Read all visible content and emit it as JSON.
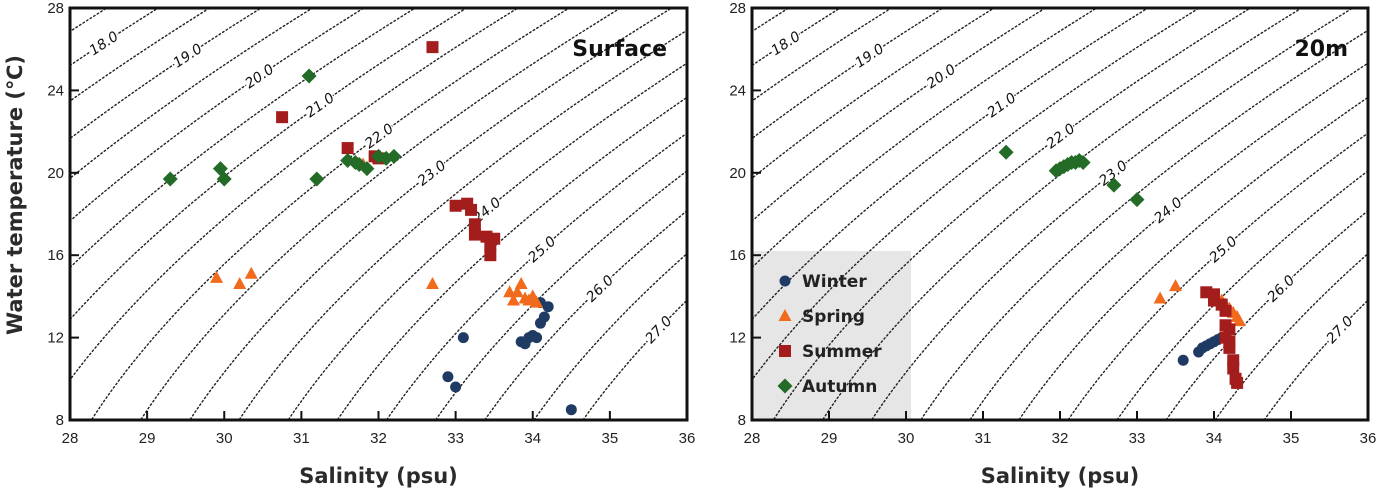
{
  "chart_data": [
    {
      "type": "scatter",
      "title": "Surface",
      "xlabel": "Salinity (psu)",
      "ylabel": "Water temperature (℃)",
      "xlim": [
        28,
        36
      ],
      "ylim": [
        8,
        28
      ],
      "x_ticks": [
        "28",
        "29",
        "30",
        "31",
        "32",
        "33",
        "34",
        "35",
        "36"
      ],
      "y_ticks": [
        "8",
        "12",
        "16",
        "20",
        "24",
        "28"
      ],
      "isopycnals": [
        "18.0",
        "19.0",
        "20.0",
        "21.0",
        "22.0",
        "23.0",
        "24.0",
        "25.0",
        "26.0",
        "27.0"
      ],
      "series": [
        {
          "name": "Winter",
          "marker": "circle",
          "color": "#1f3b63",
          "points": [
            [
              32.9,
              10.1
            ],
            [
              33.0,
              9.6
            ],
            [
              33.1,
              12.0
            ],
            [
              33.85,
              11.8
            ],
            [
              33.9,
              11.7
            ],
            [
              33.95,
              12.0
            ],
            [
              34.0,
              12.1
            ],
            [
              34.05,
              12.0
            ],
            [
              34.1,
              12.7
            ],
            [
              34.15,
              13.0
            ],
            [
              34.2,
              13.5
            ],
            [
              34.1,
              13.7
            ],
            [
              34.5,
              8.5
            ]
          ]
        },
        {
          "name": "Spring",
          "marker": "triangle",
          "color": "#f26b1d",
          "points": [
            [
              29.9,
              14.9
            ],
            [
              30.2,
              14.6
            ],
            [
              30.35,
              15.1
            ],
            [
              31.8,
              20.4
            ],
            [
              32.7,
              14.6
            ],
            [
              33.7,
              14.2
            ],
            [
              33.75,
              13.8
            ],
            [
              33.8,
              14.2
            ],
            [
              33.85,
              14.6
            ],
            [
              33.9,
              13.9
            ],
            [
              33.95,
              13.8
            ],
            [
              34.0,
              14.0
            ],
            [
              34.05,
              13.7
            ]
          ]
        },
        {
          "name": "Summer",
          "marker": "square",
          "color": "#a31d1d",
          "points": [
            [
              30.75,
              22.7
            ],
            [
              31.6,
              21.2
            ],
            [
              31.95,
              20.8
            ],
            [
              32.0,
              20.7
            ],
            [
              32.7,
              26.1
            ],
            [
              33.0,
              18.4
            ],
            [
              33.15,
              18.5
            ],
            [
              33.2,
              18.2
            ],
            [
              33.25,
              17.5
            ],
            [
              33.25,
              17.0
            ],
            [
              33.4,
              16.9
            ],
            [
              33.45,
              16.5
            ],
            [
              33.5,
              16.8
            ],
            [
              33.45,
              16.0
            ]
          ]
        },
        {
          "name": "Autumn",
          "marker": "diamond",
          "color": "#236b27",
          "points": [
            [
              29.3,
              19.7
            ],
            [
              29.95,
              20.2
            ],
            [
              30.0,
              19.7
            ],
            [
              31.1,
              24.7
            ],
            [
              31.2,
              19.7
            ],
            [
              31.6,
              20.6
            ],
            [
              31.7,
              20.5
            ],
            [
              31.75,
              20.4
            ],
            [
              31.85,
              20.2
            ],
            [
              32.0,
              20.8
            ],
            [
              32.1,
              20.7
            ],
            [
              32.2,
              20.8
            ]
          ]
        }
      ]
    },
    {
      "type": "scatter",
      "title": "20m",
      "xlabel": "Salinity (psu)",
      "ylabel": "",
      "xlim": [
        28,
        36
      ],
      "ylim": [
        8,
        28
      ],
      "x_ticks": [
        "28",
        "29",
        "30",
        "31",
        "32",
        "33",
        "34",
        "35",
        "36"
      ],
      "y_ticks": [
        "8",
        "12",
        "16",
        "20",
        "24",
        "28"
      ],
      "isopycnals": [
        "18.0",
        "19.0",
        "20.0",
        "21.0",
        "22.0",
        "23.0",
        "24.0",
        "25.0",
        "26.0",
        "27.0"
      ],
      "legend": {
        "position": "lower-left",
        "items": [
          "Winter",
          "Spring",
          "Summer",
          "Autumn"
        ]
      },
      "series": [
        {
          "name": "Winter",
          "marker": "circle",
          "color": "#1f3b63",
          "points": [
            [
              33.6,
              10.9
            ],
            [
              33.8,
              11.3
            ],
            [
              33.85,
              11.5
            ],
            [
              33.9,
              11.6
            ],
            [
              33.95,
              11.7
            ],
            [
              34.0,
              11.8
            ],
            [
              34.05,
              11.9
            ],
            [
              34.1,
              12.0
            ]
          ]
        },
        {
          "name": "Spring",
          "marker": "triangle",
          "color": "#f26b1d",
          "points": [
            [
              33.3,
              13.9
            ],
            [
              33.5,
              14.5
            ],
            [
              34.0,
              14.0
            ],
            [
              34.1,
              13.8
            ],
            [
              34.15,
              13.6
            ],
            [
              34.2,
              13.4
            ],
            [
              34.25,
              13.2
            ],
            [
              34.3,
              13.0
            ],
            [
              34.33,
              12.8
            ]
          ]
        },
        {
          "name": "Summer",
          "marker": "square",
          "color": "#a31d1d",
          "points": [
            [
              33.9,
              14.2
            ],
            [
              34.0,
              14.1
            ],
            [
              34.0,
              13.8
            ],
            [
              34.1,
              13.6
            ],
            [
              34.15,
              13.3
            ],
            [
              34.15,
              12.6
            ],
            [
              34.2,
              12.4
            ],
            [
              34.15,
              12.0
            ],
            [
              34.2,
              11.8
            ],
            [
              34.2,
              11.5
            ],
            [
              34.25,
              10.9
            ],
            [
              34.25,
              10.5
            ],
            [
              34.28,
              10.0
            ],
            [
              34.3,
              9.8
            ]
          ]
        },
        {
          "name": "Autumn",
          "marker": "diamond",
          "color": "#236b27",
          "points": [
            [
              31.3,
              21.0
            ],
            [
              31.95,
              20.1
            ],
            [
              32.0,
              20.2
            ],
            [
              32.05,
              20.3
            ],
            [
              32.1,
              20.4
            ],
            [
              32.15,
              20.5
            ],
            [
              32.2,
              20.5
            ],
            [
              32.25,
              20.6
            ],
            [
              32.3,
              20.5
            ],
            [
              32.7,
              19.4
            ],
            [
              33.0,
              18.7
            ]
          ]
        }
      ]
    }
  ]
}
